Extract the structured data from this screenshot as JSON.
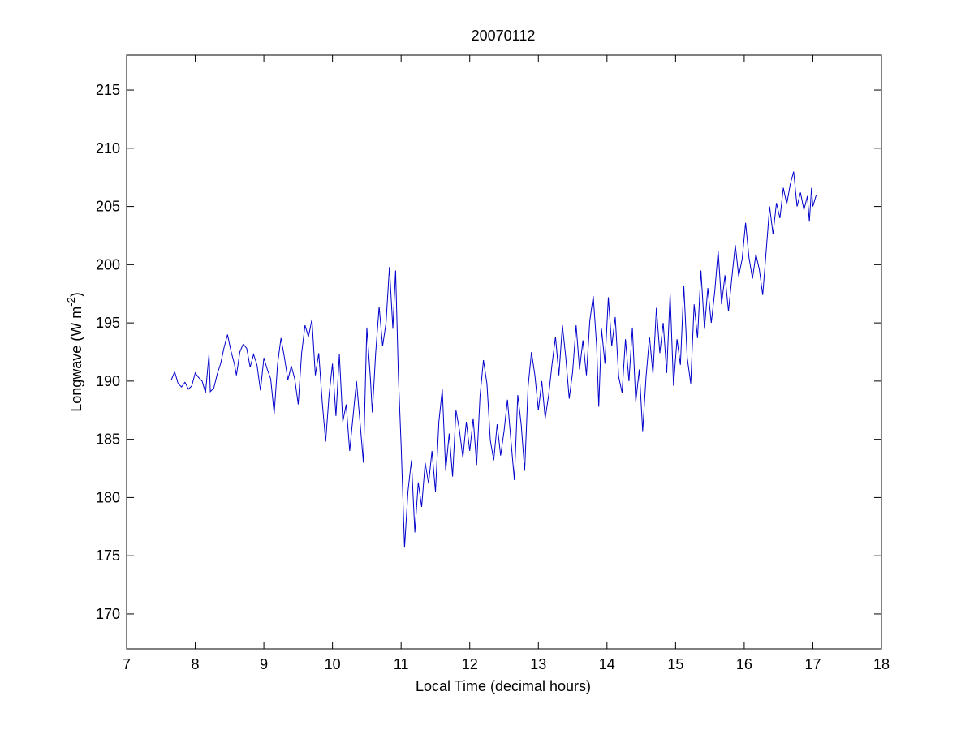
{
  "chart_data": {
    "type": "line",
    "title": "20070112",
    "xlabel": "Local Time (decimal hours)",
    "ylabel_text": "Longwave (W m",
    "ylabel_sup": "-2",
    "ylabel_close": ")",
    "xlim": [
      7,
      18
    ],
    "ylim": [
      167,
      218
    ],
    "xticks": [
      7,
      8,
      9,
      10,
      11,
      12,
      13,
      14,
      15,
      16,
      17,
      18
    ],
    "yticks": [
      170,
      175,
      180,
      185,
      190,
      195,
      200,
      205,
      210,
      215
    ],
    "grid": false,
    "series": [
      {
        "color": "#0000cc",
        "points": [
          [
            7.65,
            190.1
          ],
          [
            7.7,
            190.8
          ],
          [
            7.75,
            189.8
          ],
          [
            7.8,
            189.5
          ],
          [
            7.85,
            189.9
          ],
          [
            7.9,
            189.3
          ],
          [
            7.95,
            189.6
          ],
          [
            8.0,
            190.7
          ],
          [
            8.05,
            190.3
          ],
          [
            8.1,
            190.0
          ],
          [
            8.15,
            189.0
          ],
          [
            8.2,
            192.3
          ],
          [
            8.22,
            189.1
          ],
          [
            8.27,
            189.4
          ],
          [
            8.32,
            190.6
          ],
          [
            8.37,
            191.5
          ],
          [
            8.42,
            192.9
          ],
          [
            8.47,
            194.0
          ],
          [
            8.52,
            192.6
          ],
          [
            8.57,
            191.5
          ],
          [
            8.6,
            190.5
          ],
          [
            8.65,
            192.5
          ],
          [
            8.7,
            193.2
          ],
          [
            8.75,
            192.8
          ],
          [
            8.8,
            191.2
          ],
          [
            8.85,
            192.3
          ],
          [
            8.9,
            191.4
          ],
          [
            8.95,
            189.2
          ],
          [
            9.0,
            192.0
          ],
          [
            9.05,
            191.0
          ],
          [
            9.1,
            190.2
          ],
          [
            9.15,
            187.2
          ],
          [
            9.2,
            191.5
          ],
          [
            9.25,
            193.7
          ],
          [
            9.3,
            192.0
          ],
          [
            9.35,
            190.1
          ],
          [
            9.4,
            191.3
          ],
          [
            9.45,
            190.2
          ],
          [
            9.5,
            188.0
          ],
          [
            9.55,
            192.4
          ],
          [
            9.6,
            194.8
          ],
          [
            9.65,
            193.8
          ],
          [
            9.7,
            195.3
          ],
          [
            9.75,
            190.5
          ],
          [
            9.8,
            192.4
          ],
          [
            9.85,
            188.2
          ],
          [
            9.9,
            184.8
          ],
          [
            9.95,
            188.8
          ],
          [
            10.0,
            191.5
          ],
          [
            10.05,
            187.0
          ],
          [
            10.1,
            192.3
          ],
          [
            10.15,
            186.5
          ],
          [
            10.2,
            188.0
          ],
          [
            10.25,
            184.0
          ],
          [
            10.3,
            187.0
          ],
          [
            10.35,
            190.0
          ],
          [
            10.4,
            186.5
          ],
          [
            10.45,
            183.0
          ],
          [
            10.5,
            194.6
          ],
          [
            10.55,
            190.5
          ],
          [
            10.58,
            187.3
          ],
          [
            10.63,
            192.5
          ],
          [
            10.68,
            196.4
          ],
          [
            10.73,
            193.0
          ],
          [
            10.78,
            195.0
          ],
          [
            10.83,
            199.8
          ],
          [
            10.88,
            194.5
          ],
          [
            10.92,
            199.5
          ],
          [
            10.96,
            190.5
          ],
          [
            11.0,
            184.5
          ],
          [
            11.05,
            175.7
          ],
          [
            11.1,
            180.5
          ],
          [
            11.15,
            183.2
          ],
          [
            11.2,
            177.0
          ],
          [
            11.25,
            181.3
          ],
          [
            11.3,
            179.2
          ],
          [
            11.35,
            183.0
          ],
          [
            11.4,
            181.2
          ],
          [
            11.45,
            184.0
          ],
          [
            11.5,
            180.5
          ],
          [
            11.55,
            186.5
          ],
          [
            11.6,
            189.3
          ],
          [
            11.65,
            182.3
          ],
          [
            11.7,
            185.5
          ],
          [
            11.75,
            181.8
          ],
          [
            11.8,
            187.5
          ],
          [
            11.85,
            185.8
          ],
          [
            11.9,
            183.4
          ],
          [
            11.95,
            186.5
          ],
          [
            12.0,
            184.0
          ],
          [
            12.05,
            186.8
          ],
          [
            12.1,
            182.8
          ],
          [
            12.15,
            188.7
          ],
          [
            12.2,
            191.8
          ],
          [
            12.25,
            189.8
          ],
          [
            12.3,
            184.9
          ],
          [
            12.35,
            183.2
          ],
          [
            12.4,
            186.3
          ],
          [
            12.45,
            183.6
          ],
          [
            12.5,
            185.7
          ],
          [
            12.55,
            188.4
          ],
          [
            12.6,
            184.9
          ],
          [
            12.65,
            181.5
          ],
          [
            12.7,
            188.8
          ],
          [
            12.75,
            186.3
          ],
          [
            12.8,
            182.3
          ],
          [
            12.85,
            189.5
          ],
          [
            12.9,
            192.5
          ],
          [
            12.95,
            190.5
          ],
          [
            13.0,
            187.5
          ],
          [
            13.05,
            190.0
          ],
          [
            13.1,
            186.8
          ],
          [
            13.15,
            188.8
          ],
          [
            13.2,
            191.5
          ],
          [
            13.25,
            193.8
          ],
          [
            13.3,
            190.5
          ],
          [
            13.35,
            194.8
          ],
          [
            13.4,
            192.0
          ],
          [
            13.45,
            188.5
          ],
          [
            13.5,
            190.8
          ],
          [
            13.55,
            194.8
          ],
          [
            13.6,
            191.0
          ],
          [
            13.65,
            193.5
          ],
          [
            13.7,
            190.5
          ],
          [
            13.75,
            195.2
          ],
          [
            13.8,
            197.3
          ],
          [
            13.85,
            193.0
          ],
          [
            13.88,
            187.8
          ],
          [
            13.92,
            194.5
          ],
          [
            13.97,
            191.5
          ],
          [
            14.02,
            197.2
          ],
          [
            14.07,
            193.0
          ],
          [
            14.12,
            195.5
          ],
          [
            14.17,
            190.4
          ],
          [
            14.22,
            189.0
          ],
          [
            14.27,
            193.6
          ],
          [
            14.32,
            190.0
          ],
          [
            14.37,
            194.6
          ],
          [
            14.42,
            188.2
          ],
          [
            14.47,
            191.0
          ],
          [
            14.52,
            185.7
          ],
          [
            14.57,
            190.4
          ],
          [
            14.62,
            193.8
          ],
          [
            14.67,
            190.6
          ],
          [
            14.72,
            196.3
          ],
          [
            14.77,
            192.4
          ],
          [
            14.82,
            195.0
          ],
          [
            14.87,
            190.7
          ],
          [
            14.92,
            197.5
          ],
          [
            14.97,
            189.6
          ],
          [
            15.02,
            193.6
          ],
          [
            15.07,
            191.4
          ],
          [
            15.12,
            198.2
          ],
          [
            15.17,
            192.0
          ],
          [
            15.22,
            189.8
          ],
          [
            15.27,
            196.6
          ],
          [
            15.32,
            193.7
          ],
          [
            15.37,
            199.5
          ],
          [
            15.42,
            194.5
          ],
          [
            15.47,
            198.0
          ],
          [
            15.52,
            195.0
          ],
          [
            15.57,
            197.7
          ],
          [
            15.62,
            201.2
          ],
          [
            15.67,
            196.6
          ],
          [
            15.72,
            199.1
          ],
          [
            15.77,
            196.0
          ],
          [
            15.82,
            198.9
          ],
          [
            15.87,
            201.7
          ],
          [
            15.92,
            199.0
          ],
          [
            15.97,
            200.5
          ],
          [
            16.02,
            203.6
          ],
          [
            16.07,
            200.6
          ],
          [
            16.12,
            198.8
          ],
          [
            16.17,
            200.9
          ],
          [
            16.22,
            199.6
          ],
          [
            16.27,
            197.4
          ],
          [
            16.32,
            201.2
          ],
          [
            16.37,
            205.0
          ],
          [
            16.42,
            202.6
          ],
          [
            16.47,
            205.3
          ],
          [
            16.52,
            204.0
          ],
          [
            16.57,
            206.6
          ],
          [
            16.62,
            205.2
          ],
          [
            16.67,
            206.9
          ],
          [
            16.72,
            208.0
          ],
          [
            16.77,
            205.0
          ],
          [
            16.82,
            206.2
          ],
          [
            16.87,
            204.7
          ],
          [
            16.92,
            205.9
          ],
          [
            16.95,
            203.7
          ],
          [
            16.98,
            206.6
          ],
          [
            17.0,
            205.0
          ],
          [
            17.05,
            206.0
          ]
        ]
      }
    ]
  }
}
